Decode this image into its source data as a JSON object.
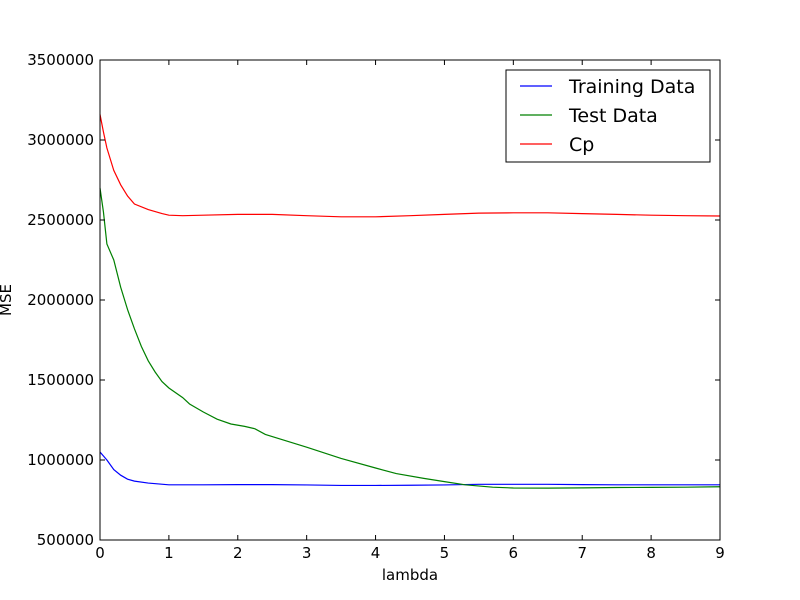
{
  "chart_data": {
    "type": "line",
    "title": "",
    "xlabel": "lambda",
    "ylabel": "MSE",
    "xlim": [
      0,
      9
    ],
    "ylim": [
      500000,
      3500000
    ],
    "xticks": [
      0,
      1,
      2,
      3,
      4,
      5,
      6,
      7,
      8,
      9
    ],
    "xtick_labels": [
      "0",
      "1",
      "2",
      "3",
      "4",
      "5",
      "6",
      "7",
      "8",
      "9"
    ],
    "yticks": [
      500000,
      1000000,
      1500000,
      2000000,
      2500000,
      3000000,
      3500000
    ],
    "ytick_labels": [
      "500000",
      "1000000",
      "1500000",
      "2000000",
      "2500000",
      "3000000",
      "3500000"
    ],
    "grid": false,
    "legend_position": "top-right",
    "series": [
      {
        "name": "Training Data",
        "color": "#0000ff",
        "points": [
          [
            0,
            1050000
          ],
          [
            0.1,
            1000000
          ],
          [
            0.2,
            940000
          ],
          [
            0.3,
            905000
          ],
          [
            0.4,
            880000
          ],
          [
            0.5,
            868000
          ],
          [
            0.7,
            856000
          ],
          [
            1.0,
            845000
          ],
          [
            1.5,
            845000
          ],
          [
            2.0,
            846000
          ],
          [
            2.5,
            846000
          ],
          [
            3.0,
            844000
          ],
          [
            3.5,
            841000
          ],
          [
            4.0,
            841000
          ],
          [
            4.5,
            842000
          ],
          [
            5.0,
            844000
          ],
          [
            5.5,
            848000
          ],
          [
            6.0,
            848000
          ],
          [
            6.5,
            848000
          ],
          [
            7.0,
            846000
          ],
          [
            7.5,
            845000
          ],
          [
            8.0,
            845000
          ],
          [
            8.5,
            845000
          ],
          [
            9.0,
            845000
          ]
        ]
      },
      {
        "name": "Test Data",
        "color": "#008000",
        "points": [
          [
            0,
            2700000
          ],
          [
            0.05,
            2550000
          ],
          [
            0.1,
            2350000
          ],
          [
            0.2,
            2250000
          ],
          [
            0.3,
            2080000
          ],
          [
            0.4,
            1940000
          ],
          [
            0.5,
            1820000
          ],
          [
            0.6,
            1710000
          ],
          [
            0.7,
            1620000
          ],
          [
            0.8,
            1550000
          ],
          [
            0.9,
            1490000
          ],
          [
            1.0,
            1450000
          ],
          [
            1.2,
            1390000
          ],
          [
            1.3,
            1350000
          ],
          [
            1.5,
            1300000
          ],
          [
            1.7,
            1255000
          ],
          [
            1.9,
            1225000
          ],
          [
            2.1,
            1210000
          ],
          [
            2.25,
            1195000
          ],
          [
            2.4,
            1160000
          ],
          [
            2.7,
            1120000
          ],
          [
            3.0,
            1080000
          ],
          [
            3.5,
            1010000
          ],
          [
            4.0,
            950000
          ],
          [
            4.3,
            915000
          ],
          [
            4.7,
            885000
          ],
          [
            5.0,
            865000
          ],
          [
            5.3,
            845000
          ],
          [
            5.7,
            830000
          ],
          [
            6.0,
            825000
          ],
          [
            6.5,
            824000
          ],
          [
            7.0,
            826000
          ],
          [
            7.5,
            828000
          ],
          [
            8.0,
            829000
          ],
          [
            8.5,
            830000
          ],
          [
            9.0,
            833000
          ]
        ]
      },
      {
        "name": "Cp",
        "color": "#ff0000",
        "points": [
          [
            0,
            3160000
          ],
          [
            0.05,
            3050000
          ],
          [
            0.1,
            2950000
          ],
          [
            0.2,
            2810000
          ],
          [
            0.3,
            2720000
          ],
          [
            0.4,
            2650000
          ],
          [
            0.5,
            2600000
          ],
          [
            0.7,
            2565000
          ],
          [
            0.9,
            2540000
          ],
          [
            1.0,
            2530000
          ],
          [
            1.2,
            2527000
          ],
          [
            1.5,
            2530000
          ],
          [
            2.0,
            2535000
          ],
          [
            2.5,
            2535000
          ],
          [
            3.0,
            2527000
          ],
          [
            3.5,
            2520000
          ],
          [
            4.0,
            2520000
          ],
          [
            4.5,
            2527000
          ],
          [
            5.0,
            2535000
          ],
          [
            5.5,
            2543000
          ],
          [
            6.0,
            2545000
          ],
          [
            6.5,
            2545000
          ],
          [
            7.0,
            2540000
          ],
          [
            7.5,
            2535000
          ],
          [
            8.0,
            2530000
          ],
          [
            8.5,
            2527000
          ],
          [
            9.0,
            2525000
          ]
        ]
      }
    ]
  }
}
